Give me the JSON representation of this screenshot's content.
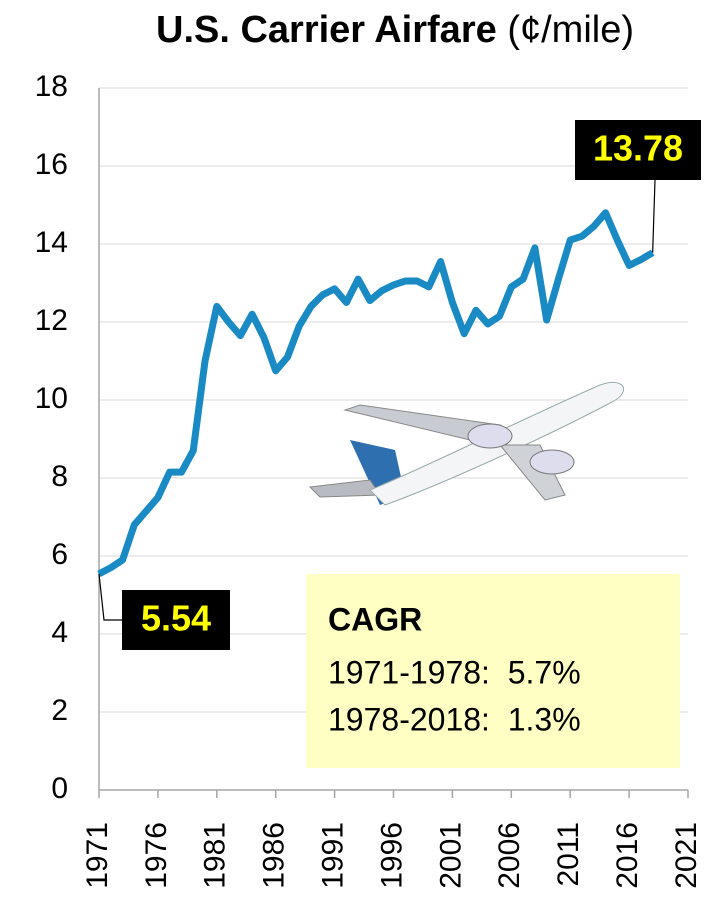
{
  "chart_data": {
    "type": "line",
    "title": "U.S. Carrier Airfare",
    "title_unit": "(¢/mile)",
    "x": [
      1971,
      1972,
      1973,
      1974,
      1975,
      1976,
      1977,
      1978,
      1979,
      1980,
      1981,
      1982,
      1983,
      1984,
      1985,
      1986,
      1987,
      1988,
      1989,
      1990,
      1991,
      1992,
      1993,
      1994,
      1995,
      1996,
      1997,
      1998,
      1999,
      2000,
      2001,
      2002,
      2003,
      2004,
      2005,
      2006,
      2007,
      2008,
      2009,
      2010,
      2011,
      2012,
      2013,
      2014,
      2015,
      2016,
      2017,
      2018
    ],
    "values": [
      5.54,
      5.7,
      5.9,
      6.8,
      7.15,
      7.5,
      8.15,
      8.15,
      8.7,
      11.0,
      12.4,
      12.0,
      11.65,
      12.2,
      11.6,
      10.75,
      11.1,
      11.9,
      12.4,
      12.7,
      12.85,
      12.5,
      13.1,
      12.55,
      12.8,
      12.95,
      13.05,
      13.05,
      12.9,
      13.55,
      12.5,
      11.7,
      12.3,
      11.95,
      12.15,
      12.9,
      13.1,
      13.9,
      12.05,
      13.1,
      14.1,
      14.2,
      14.45,
      14.8,
      14.1,
      13.45,
      13.6,
      13.78
    ],
    "color": "#1a8ac4",
    "xlim": [
      1971,
      2021
    ],
    "xticks": [
      1971,
      1976,
      1981,
      1986,
      1991,
      1996,
      2001,
      2006,
      2011,
      2016,
      2021
    ],
    "ylim": [
      0,
      18
    ],
    "yticks": [
      0,
      2,
      4,
      6,
      8,
      10,
      12,
      14,
      16,
      18
    ],
    "grid": true,
    "annotation": {
      "title": "CAGR",
      "lines": [
        "1971-1978:  5.7%",
        "1978-2018:  1.3%"
      ]
    }
  }
}
